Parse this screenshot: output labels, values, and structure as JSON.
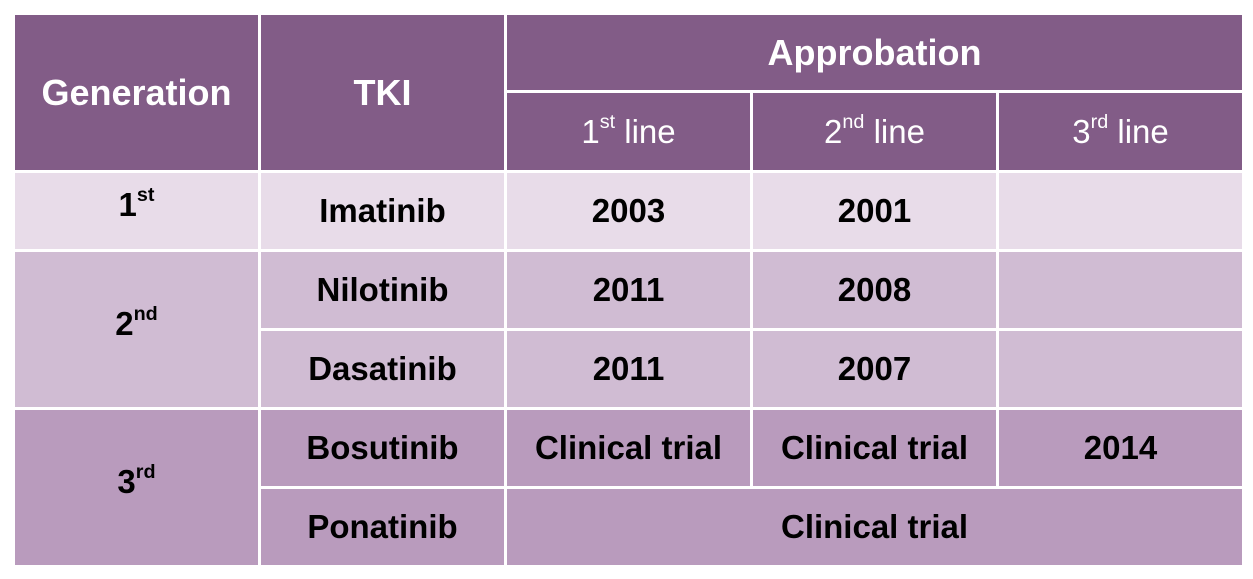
{
  "header": {
    "generation": "Generation",
    "tki": "TKI",
    "approbation": "Approbation",
    "lines": [
      {
        "base": "1",
        "sup": "st",
        "rest": " line"
      },
      {
        "base": "2",
        "sup": "nd",
        "rest": " line"
      },
      {
        "base": "3",
        "sup": "rd",
        "rest": " line"
      }
    ]
  },
  "generations": {
    "g1": {
      "base": "1",
      "sup": "st"
    },
    "g2": {
      "base": "2",
      "sup": "nd"
    },
    "g3": {
      "base": "3",
      "sup": "rd"
    }
  },
  "rows": [
    {
      "tki": "Imatinib",
      "first": "2003",
      "second": "2001",
      "third": ""
    },
    {
      "tki": "Nilotinib",
      "first": "2011",
      "second": "2008",
      "third": ""
    },
    {
      "tki": "Dasatinib",
      "first": "2011",
      "second": "2007",
      "third": ""
    },
    {
      "tki": "Bosutinib",
      "first": "Clinical trial",
      "second": "Clinical trial",
      "third": "2014"
    },
    {
      "tki": "Ponatinib",
      "merged": "Clinical trial"
    }
  ],
  "colors": {
    "header_bg": "#825c87",
    "gen1_bg": "#e8dce9",
    "gen2_bg": "#d0bcd3",
    "gen3_bg": "#b99bbd"
  }
}
